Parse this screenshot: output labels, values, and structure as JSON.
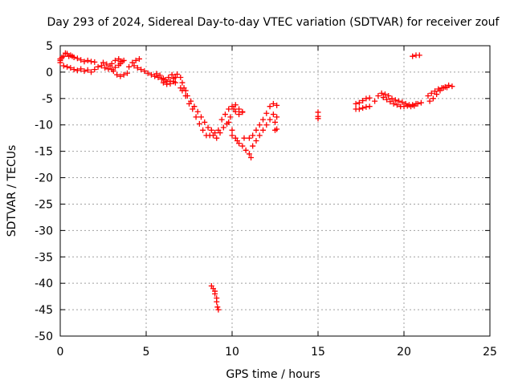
{
  "chart_data": {
    "type": "scatter",
    "title": "Day 293 of 2024, Sidereal Day-to-day VTEC variation (SDTVAR) for receiver zouf",
    "xlabel": "GPS time / hours",
    "ylabel": "SDTVAR / TECUs",
    "xlim": [
      0,
      25
    ],
    "ylim": [
      -50,
      5
    ],
    "xticks": [
      0,
      5,
      10,
      15,
      20,
      25
    ],
    "yticks": [
      5,
      0,
      -5,
      -10,
      -15,
      -20,
      -25,
      -30,
      -35,
      -40,
      -45,
      -50
    ],
    "grid": true,
    "legend": "none",
    "marker": "+",
    "colors": {
      "series": "#ff0000",
      "grid": "#a0a0a0",
      "axis": "#000000"
    },
    "series": [
      {
        "name": "SDTVAR",
        "points": [
          [
            0.0,
            2.5
          ],
          [
            0.0,
            1.8
          ],
          [
            0.0,
            2.2
          ],
          [
            0.1,
            2.8
          ],
          [
            0.2,
            3.0
          ],
          [
            0.3,
            3.6
          ],
          [
            0.4,
            3.5
          ],
          [
            0.5,
            3.0
          ],
          [
            0.6,
            3.2
          ],
          [
            0.7,
            3.0
          ],
          [
            0.8,
            2.8
          ],
          [
            1.0,
            2.6
          ],
          [
            1.2,
            2.3
          ],
          [
            1.4,
            2.0
          ],
          [
            1.6,
            2.2
          ],
          [
            1.8,
            2.0
          ],
          [
            2.0,
            1.9
          ],
          [
            0.2,
            1.2
          ],
          [
            0.4,
            1.0
          ],
          [
            0.6,
            0.8
          ],
          [
            0.8,
            0.5
          ],
          [
            1.0,
            0.3
          ],
          [
            1.2,
            0.6
          ],
          [
            1.4,
            0.2
          ],
          [
            1.6,
            0.4
          ],
          [
            1.8,
            0.0
          ],
          [
            2.0,
            0.5
          ],
          [
            2.2,
            1.0
          ],
          [
            2.4,
            1.2
          ],
          [
            2.6,
            0.8
          ],
          [
            2.8,
            0.6
          ],
          [
            3.0,
            0.5
          ],
          [
            3.2,
            0.9
          ],
          [
            3.4,
            1.3
          ],
          [
            3.5,
            1.6
          ],
          [
            3.6,
            2.0
          ],
          [
            3.7,
            2.2
          ],
          [
            3.0,
            1.6
          ],
          [
            3.2,
            2.2
          ],
          [
            3.4,
            2.5
          ],
          [
            3.5,
            2.0
          ],
          [
            2.5,
            1.8
          ],
          [
            2.7,
            1.5
          ],
          [
            2.9,
            1.2
          ],
          [
            3.1,
            0.2
          ],
          [
            3.3,
            -0.5
          ],
          [
            3.5,
            -0.8
          ],
          [
            3.7,
            -0.5
          ],
          [
            3.9,
            -0.2
          ],
          [
            4.0,
            1.0
          ],
          [
            4.2,
            1.8
          ],
          [
            4.4,
            2.2
          ],
          [
            4.6,
            2.5
          ],
          [
            4.3,
            1.2
          ],
          [
            4.5,
            0.8
          ],
          [
            4.7,
            0.5
          ],
          [
            4.9,
            0.2
          ],
          [
            5.1,
            -0.2
          ],
          [
            5.3,
            -0.5
          ],
          [
            5.5,
            -0.8
          ],
          [
            5.7,
            -1.0
          ],
          [
            5.9,
            -1.3
          ],
          [
            6.1,
            -1.5
          ],
          [
            6.3,
            -1.0
          ],
          [
            6.5,
            -0.5
          ],
          [
            5.6,
            -0.3
          ],
          [
            5.8,
            -0.6
          ],
          [
            6.0,
            -1.2
          ],
          [
            6.2,
            -1.8
          ],
          [
            6.4,
            -1.7
          ],
          [
            6.6,
            -1.2
          ],
          [
            6.0,
            -2.0
          ],
          [
            6.2,
            -2.3
          ],
          [
            6.4,
            -2.2
          ],
          [
            6.6,
            -1.8
          ],
          [
            6.7,
            -1.0
          ],
          [
            6.8,
            -0.4
          ],
          [
            6.7,
            -2.0
          ],
          [
            7.0,
            -1.0
          ],
          [
            7.0,
            -3.0
          ],
          [
            7.1,
            -2.0
          ],
          [
            7.2,
            -3.0
          ],
          [
            7.3,
            -3.5
          ],
          [
            7.4,
            -4.5
          ],
          [
            7.6,
            -5.5
          ],
          [
            7.8,
            -6.5
          ],
          [
            8.0,
            -7.5
          ],
          [
            8.2,
            -8.5
          ],
          [
            8.4,
            -9.5
          ],
          [
            8.6,
            -10.5
          ],
          [
            8.8,
            -11.0
          ],
          [
            9.0,
            -11.5
          ],
          [
            7.1,
            -3.5
          ],
          [
            7.3,
            -4.5
          ],
          [
            7.5,
            -6.0
          ],
          [
            7.7,
            -7.0
          ],
          [
            7.9,
            -8.5
          ],
          [
            8.1,
            -9.8
          ],
          [
            8.3,
            -11.0
          ],
          [
            8.5,
            -12.0
          ],
          [
            8.7,
            -12.0
          ],
          [
            8.9,
            -12.0
          ],
          [
            9.1,
            -12.5
          ],
          [
            9.3,
            -11.5
          ],
          [
            9.5,
            -10.5
          ],
          [
            9.7,
            -9.8
          ],
          [
            9.9,
            -8.5
          ],
          [
            10.1,
            -7.0
          ],
          [
            10.2,
            -6.2
          ],
          [
            10.4,
            -7.0
          ],
          [
            10.6,
            -7.5
          ],
          [
            9.2,
            -11.0
          ],
          [
            9.4,
            -9.0
          ],
          [
            9.6,
            -8.0
          ],
          [
            9.8,
            -7.0
          ],
          [
            10.0,
            -6.5
          ],
          [
            10.2,
            -7.5
          ],
          [
            10.4,
            -8.0
          ],
          [
            10.6,
            -7.6
          ],
          [
            9.8,
            -9.5
          ],
          [
            10.0,
            -11.0
          ],
          [
            10.2,
            -12.5
          ],
          [
            10.4,
            -13.5
          ],
          [
            10.6,
            -14.0
          ],
          [
            10.8,
            -14.8
          ],
          [
            11.0,
            -15.5
          ],
          [
            11.1,
            -16.2
          ],
          [
            10.0,
            -12.0
          ],
          [
            10.3,
            -13.0
          ],
          [
            10.7,
            -12.5
          ],
          [
            11.0,
            -12.5
          ],
          [
            11.2,
            -12.0
          ],
          [
            11.4,
            -11.0
          ],
          [
            11.6,
            -10.0
          ],
          [
            11.8,
            -9.0
          ],
          [
            12.0,
            -7.8
          ],
          [
            12.2,
            -6.5
          ],
          [
            12.4,
            -6.0
          ],
          [
            12.6,
            -6.3
          ],
          [
            11.2,
            -14.0
          ],
          [
            11.4,
            -13.0
          ],
          [
            11.6,
            -12.0
          ],
          [
            11.8,
            -11.0
          ],
          [
            12.0,
            -10.0
          ],
          [
            12.2,
            -9.0
          ],
          [
            12.4,
            -8.0
          ],
          [
            12.6,
            -8.5
          ],
          [
            12.5,
            -11.0
          ],
          [
            12.6,
            -10.8
          ],
          [
            12.5,
            -9.5
          ],
          [
            8.8,
            -40.5
          ],
          [
            8.9,
            -41.0
          ],
          [
            9.0,
            -42.0
          ],
          [
            9.1,
            -43.5
          ],
          [
            9.15,
            -44.5
          ],
          [
            9.2,
            -45.0
          ],
          [
            9.0,
            -41.5
          ],
          [
            9.1,
            -42.8
          ],
          [
            15.0,
            -7.6
          ],
          [
            15.0,
            -8.4
          ],
          [
            15.0,
            -8.8
          ],
          [
            17.2,
            -6.0
          ],
          [
            17.4,
            -5.8
          ],
          [
            17.6,
            -5.4
          ],
          [
            17.8,
            -5.0
          ],
          [
            18.0,
            -4.9
          ],
          [
            17.2,
            -7.0
          ],
          [
            17.4,
            -7.0
          ],
          [
            17.6,
            -6.8
          ],
          [
            17.8,
            -6.6
          ],
          [
            18.0,
            -6.5
          ],
          [
            18.3,
            -5.5
          ],
          [
            18.5,
            -4.5
          ],
          [
            18.7,
            -4.0
          ],
          [
            18.9,
            -4.2
          ],
          [
            19.1,
            -4.5
          ],
          [
            19.3,
            -5.0
          ],
          [
            19.5,
            -5.3
          ],
          [
            19.7,
            -5.5
          ],
          [
            19.9,
            -5.7
          ],
          [
            20.1,
            -6.0
          ],
          [
            20.3,
            -6.2
          ],
          [
            20.5,
            -6.2
          ],
          [
            20.7,
            -6.0
          ],
          [
            18.8,
            -4.8
          ],
          [
            19.0,
            -5.2
          ],
          [
            19.2,
            -5.6
          ],
          [
            19.4,
            -6.0
          ],
          [
            19.6,
            -6.2
          ],
          [
            19.8,
            -6.5
          ],
          [
            20.0,
            -6.5
          ],
          [
            20.2,
            -6.4
          ],
          [
            20.4,
            -6.5
          ],
          [
            20.6,
            -6.4
          ],
          [
            20.8,
            -6.0
          ],
          [
            21.0,
            -5.8
          ],
          [
            20.5,
            3.0
          ],
          [
            20.7,
            3.2
          ],
          [
            20.9,
            3.2
          ],
          [
            21.4,
            -4.5
          ],
          [
            21.6,
            -4.0
          ],
          [
            21.8,
            -3.6
          ],
          [
            22.0,
            -3.2
          ],
          [
            22.2,
            -3.0
          ],
          [
            22.4,
            -2.8
          ],
          [
            22.6,
            -2.5
          ],
          [
            22.8,
            -2.7
          ],
          [
            21.5,
            -5.5
          ],
          [
            21.7,
            -5.0
          ],
          [
            21.9,
            -4.2
          ],
          [
            22.1,
            -3.5
          ],
          [
            22.3,
            -3.0
          ],
          [
            22.5,
            -2.9
          ]
        ]
      }
    ]
  }
}
